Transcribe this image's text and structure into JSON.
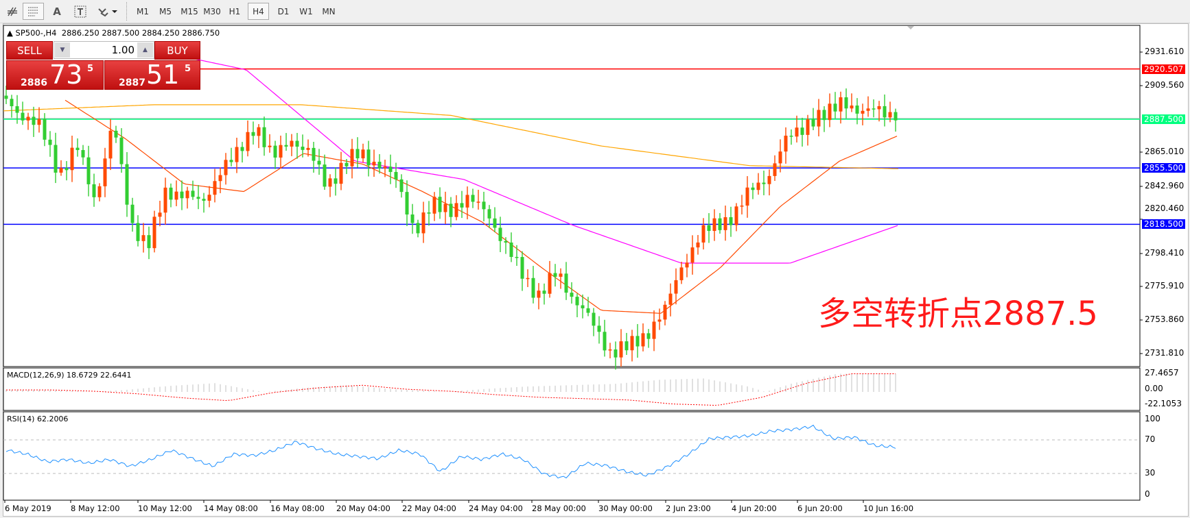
{
  "toolbar": {
    "tools": [
      "chart-objects-icon",
      "fibonacci-icon",
      "text-icon",
      "text-label-icon",
      "arrows-icon"
    ],
    "timeframes": [
      "M1",
      "M5",
      "M15",
      "M30",
      "H1",
      "H4",
      "D1",
      "W1",
      "MN"
    ],
    "selected_timeframe": "H4"
  },
  "chart": {
    "title": "SP500-,H4",
    "ohlc": "2886.250 2887.500 2884.250 2886.750",
    "annotation": "多空转折点2887.5",
    "colors": {
      "bull": "#ff4a00",
      "bear": "#32cd32",
      "resistance": "#ff0000",
      "pivot": "#00ff7f",
      "support": "#0000ff",
      "ma_fast": "#ff4a00",
      "ma_mid": "#ff00ff",
      "ma_slow": "#ffa500",
      "annotation": "#ff1a1a"
    }
  },
  "trade_panel": {
    "sell_label": "SELL",
    "buy_label": "BUY",
    "volume": "1.00",
    "sell_price": {
      "prefix": "2886",
      "big": "73",
      "sup": "5"
    },
    "buy_price": {
      "prefix": "2887",
      "big": "51",
      "sup": "5"
    }
  },
  "price_axis": [
    "2931.610",
    "2909.560",
    "2865.010",
    "2842.960",
    "2820.460",
    "2798.410",
    "2775.910",
    "2753.860",
    "2731.810"
  ],
  "levels": [
    {
      "price": 2920.507,
      "label": "2920.507",
      "color": "#ff0000"
    },
    {
      "price": 2887.5,
      "label": "2887.500",
      "color": "#00ff7f"
    },
    {
      "price": 2855.5,
      "label": "2855.500",
      "color": "#0000ff"
    },
    {
      "price": 2818.5,
      "label": "2818.500",
      "color": "#0000ff"
    }
  ],
  "time_axis": [
    "6 May 2019",
    "8 May 12:00",
    "10 May 12:00",
    "14 May 08:00",
    "16 May 08:00",
    "20 May 04:00",
    "22 May 04:00",
    "24 May 04:00",
    "28 May 00:00",
    "30 May 00:00",
    "2 Jun 23:00",
    "4 Jun 20:00",
    "6 Jun 20:00",
    "10 Jun 16:00"
  ],
  "macd": {
    "label": "MACD(12,26,9) 18.6729 22.6441",
    "axis": [
      "27.4657",
      "0.00",
      "-22.1053"
    ],
    "signal": [
      3,
      3,
      1,
      -3,
      -9,
      -13,
      -1,
      6,
      10,
      4,
      1,
      -4,
      -8,
      -10,
      -12,
      -18,
      -20,
      -8,
      13,
      27,
      27
    ]
  },
  "rsi": {
    "label": "RSI(14) 62.2006",
    "axis": [
      "100",
      "70",
      "30",
      "0"
    ],
    "values": [
      58,
      53,
      43,
      46,
      41,
      46,
      37,
      46,
      58,
      47,
      37,
      53,
      51,
      58,
      69,
      60,
      53,
      50,
      47,
      58,
      53,
      30,
      50,
      46,
      53,
      46,
      27,
      22,
      41,
      38,
      30,
      25,
      37,
      53,
      73,
      75,
      77,
      83,
      85,
      89,
      73,
      75,
      64,
      62
    ]
  },
  "chart_data": {
    "type": "candlestick",
    "closes": [
      2900,
      2890,
      2880,
      2853,
      2868,
      2835,
      2885,
      2820,
      2805,
      2840,
      2840,
      2830,
      2855,
      2863,
      2886,
      2860,
      2876,
      2865,
      2845,
      2858,
      2865,
      2858,
      2845,
      2815,
      2830,
      2830,
      2833,
      2830,
      2803,
      2788,
      2770,
      2788,
      2768,
      2752,
      2735,
      2737,
      2748,
      2760,
      2793,
      2810,
      2820,
      2825,
      2843,
      2853,
      2876,
      2886,
      2888,
      2903,
      2888,
      2898,
      2886.75
    ],
    "ma_fast": [
      2900,
      2875,
      2845,
      2840,
      2865,
      2858,
      2840,
      2820,
      2790,
      2762,
      2760,
      2790,
      2830,
      2860,
      2877
    ],
    "ma_mid": [
      2935,
      2920,
      2860,
      2848,
      2818,
      2793,
      2793,
      2818
    ],
    "ma_slow": [
      2893,
      2897,
      2897,
      2890,
      2870,
      2857,
      2855
    ]
  }
}
